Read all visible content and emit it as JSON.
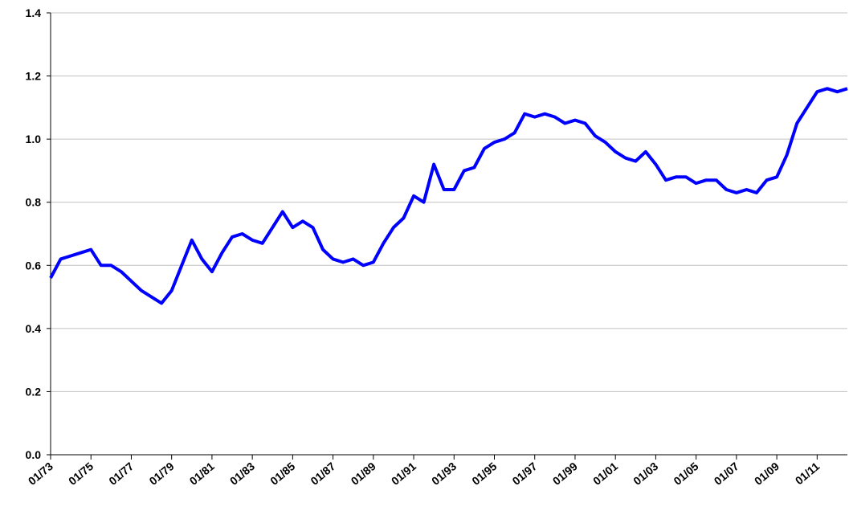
{
  "chart_data": {
    "type": "line",
    "categories": [
      "01/73",
      null,
      null,
      null,
      "01/75",
      null,
      null,
      null,
      "01/77",
      null,
      null,
      null,
      "01/79",
      null,
      null,
      null,
      "01/81",
      null,
      null,
      null,
      "01/83",
      null,
      null,
      null,
      "01/85",
      null,
      null,
      null,
      "01/87",
      null,
      null,
      null,
      "01/89",
      null,
      null,
      null,
      "01/91",
      null,
      null,
      null,
      "01/93",
      null,
      null,
      null,
      "01/95",
      null,
      null,
      null,
      "01/97",
      null,
      null,
      null,
      "01/99",
      null,
      null,
      null,
      "01/01",
      null,
      null,
      null,
      "01/03",
      null,
      null,
      null,
      "01/05",
      null,
      null,
      null,
      "01/07",
      null,
      null,
      null,
      "01/09",
      null,
      null,
      null,
      "01/11",
      null,
      null,
      null
    ],
    "values": [
      0.56,
      0.62,
      0.63,
      0.64,
      0.65,
      0.6,
      0.6,
      0.58,
      0.55,
      0.52,
      0.5,
      0.48,
      0.52,
      0.6,
      0.68,
      0.62,
      0.58,
      0.64,
      0.69,
      0.7,
      0.68,
      0.67,
      0.72,
      0.77,
      0.72,
      0.74,
      0.72,
      0.65,
      0.62,
      0.61,
      0.62,
      0.6,
      0.61,
      0.67,
      0.72,
      0.75,
      0.82,
      0.8,
      0.92,
      0.84,
      0.84,
      0.9,
      0.91,
      0.97,
      0.99,
      1.0,
      1.02,
      1.08,
      1.07,
      1.08,
      1.07,
      1.05,
      1.06,
      1.05,
      1.01,
      0.99,
      0.96,
      0.94,
      0.93,
      0.96,
      0.92,
      0.87,
      0.88,
      0.88,
      0.86,
      0.87,
      0.87,
      0.84,
      0.83,
      0.84,
      0.83,
      0.87,
      0.88,
      0.95,
      1.05,
      1.1,
      1.15,
      1.16,
      1.15,
      1.16
    ],
    "color": "#0000ff",
    "ylim": [
      0,
      1.4
    ],
    "yticks": [
      {
        "value": 0,
        "label": "0.0"
      },
      0.2,
      0.4,
      0.6,
      0.8,
      {
        "value": 1,
        "label": "1.0"
      },
      1.2,
      1.4
    ],
    "grid": true
  }
}
